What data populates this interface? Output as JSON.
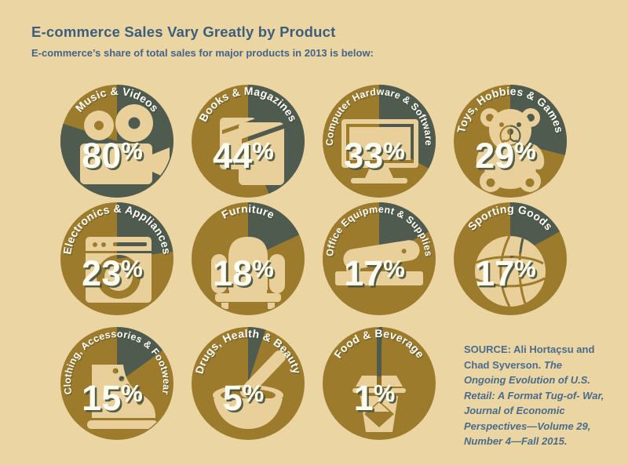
{
  "header": {
    "title": "E-commerce Sales Vary Greatly by Product",
    "subtitle": "E-commerce’s share of total sales for major products in 2013 is below:"
  },
  "products": [
    {
      "label": "Music & Videos",
      "pct": 80,
      "icon": "movie-camera"
    },
    {
      "label": "Books & Magazines",
      "pct": 44,
      "icon": "books"
    },
    {
      "label": "Computer Hardware & Software",
      "pct": 33,
      "icon": "monitor"
    },
    {
      "label": "Toys, Hobbies & Games",
      "pct": 29,
      "icon": "teddy-bear"
    },
    {
      "label": "Electronics & Appliances",
      "pct": 23,
      "icon": "washing-machine"
    },
    {
      "label": "Furniture",
      "pct": 18,
      "icon": "armchair"
    },
    {
      "label": "Office Equipment & Supplies",
      "pct": 17,
      "icon": "stapler"
    },
    {
      "label": "Sporting Goods",
      "pct": 17,
      "icon": "volleyball"
    },
    {
      "label": "Clothing, Accessories & Footwear",
      "pct": 15,
      "icon": "boot"
    },
    {
      "label": "Drugs, Health & Beauty",
      "pct": 5,
      "icon": "mortar-pestle"
    },
    {
      "label": "Food & Beverage",
      "pct": 1,
      "icon": "coffee-cup"
    }
  ],
  "source": {
    "label": "SOURCE:",
    "authors": "Ali Hortaçsu and Chad Syverson. ",
    "work": "The Ongoing Evolution of U.S. Retail: A Format Tug-of- War, Journal of Economic Perspectives—Volume 29, Number 4—Fall 2015."
  },
  "colors": {
    "background": "#ebd5a3",
    "gold": "#9d7b2d",
    "slate": "#4f5b4e",
    "icon_tan": "#e9d09a",
    "title_blue": "#3d5d7c",
    "source_blue": "#4a6c8b",
    "pct_fill": "#fffdf2",
    "pct_shadow": "#44523f",
    "label_white": "#fffef7",
    "straw_dark_gold": "#8d6d28"
  },
  "chart_data": {
    "type": "pie",
    "title": "E-commerce Sales Vary Greatly by Product",
    "subtitle": "E-commerce’s share of total sales for major products in 2013 is below:",
    "unit": "percent of total sales, 2013",
    "categories": [
      "Music & Videos",
      "Books & Magazines",
      "Computer Hardware & Software",
      "Toys, Hobbies & Games",
      "Electronics & Appliances",
      "Furniture",
      "Office Equipment & Supplies",
      "Sporting Goods",
      "Clothing, Accessories & Footwear",
      "Drugs, Health & Beauty",
      "Food & Beverage"
    ],
    "values": [
      80,
      44,
      33,
      29,
      23,
      18,
      17,
      17,
      15,
      5,
      1
    ],
    "layout": "small-multiples pie circles, 4 columns x 3 rows; dark slate wedge starts at 12 o'clock clockwise and equals the e-commerce share; remainder gold"
  }
}
